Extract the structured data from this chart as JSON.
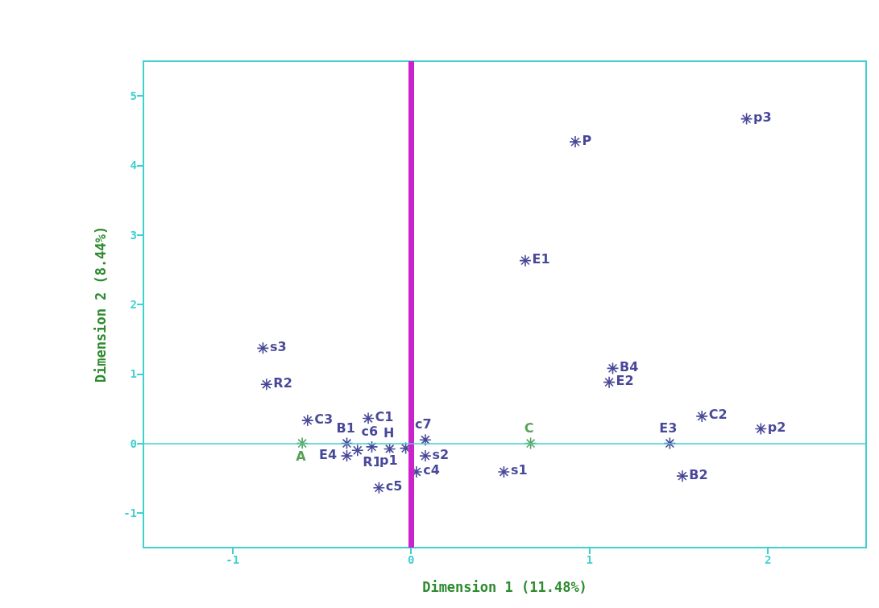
{
  "chart_data": {
    "type": "scatter",
    "xlabel": "Dimension 1 (11.48%)",
    "ylabel": "Dimension 2 (8.44%)",
    "xlim": [
      -1.5,
      2.55
    ],
    "xticks": [
      -1,
      0,
      1,
      2
    ],
    "ylim": [
      -1.5,
      5.5
    ],
    "yticks": [
      -1,
      0,
      1,
      2,
      3,
      4,
      5
    ],
    "grid": false,
    "marker": "cross",
    "ref_lines": [
      {
        "axis": "x",
        "value": 0,
        "color": "#cc22cc"
      },
      {
        "axis": "y",
        "value": 0,
        "color": "#40d0d0"
      }
    ],
    "series": [
      {
        "color": "#1a1a80",
        "x": [
          -0.83,
          -0.81,
          -0.58,
          -0.24,
          -0.36,
          -0.36,
          -0.22,
          -0.3,
          -0.12,
          -0.03,
          0.08,
          0.08,
          -0.18,
          0.03,
          0.52,
          0.64,
          0.92,
          1.88,
          1.13,
          1.11,
          1.63,
          1.96,
          1.45,
          1.52
        ],
        "values": [
          1.37,
          0.85,
          0.33,
          0.36,
          0.0,
          -0.18,
          -0.05,
          -0.1,
          -0.08,
          -0.07,
          0.05,
          -0.18,
          -0.64,
          -0.41,
          -0.41,
          2.63,
          4.34,
          4.67,
          1.08,
          0.88,
          0.39,
          0.21,
          0.0,
          -0.47
        ],
        "value_labels": [
          "s3",
          "R2",
          "C3",
          "C1",
          "B1",
          "E4",
          "c6",
          "R1",
          "H",
          "p1",
          "c7",
          "s2",
          "c5",
          "c4",
          "s1",
          "E1",
          "P",
          "p3",
          "B4",
          "E2",
          "C2",
          "p2",
          "E3",
          "B2"
        ]
      },
      {
        "color": "#2e8b2e",
        "x": [
          -0.61,
          0.67
        ],
        "values": [
          0.0,
          0.0
        ],
        "value_labels": [
          "A",
          "C"
        ]
      }
    ]
  }
}
